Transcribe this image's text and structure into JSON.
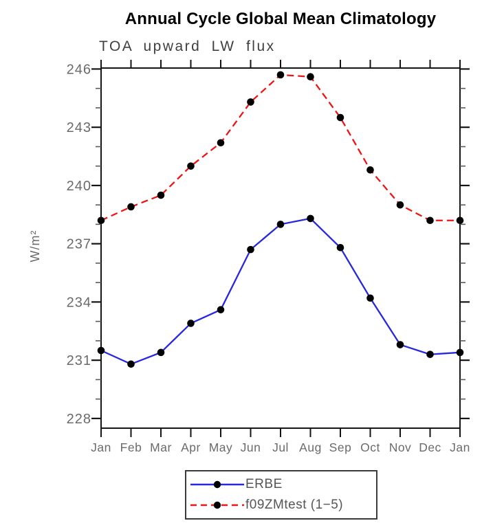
{
  "page": {
    "background": "#ffffff"
  },
  "chart_data": {
    "type": "line",
    "title": "Annual Cycle Global Mean Climatology",
    "subtitle": "TOA upward LW flux",
    "ylabel": "W/m²",
    "xlabel": "",
    "x_tick_labels": [
      "Jan",
      "Feb",
      "Mar",
      "Apr",
      "May",
      "Jun",
      "Jul",
      "Aug",
      "Sep",
      "Oct",
      "Nov",
      "Dec",
      "Jan"
    ],
    "y_major_ticks": [
      228,
      231,
      234,
      237,
      240,
      243,
      246
    ],
    "y_minor_tick_interval": 1,
    "ylim": [
      227.5,
      246.05
    ],
    "grid": false,
    "legend_position": "bottom-center",
    "series": [
      {
        "name": "ERBE",
        "color": "#2727e0",
        "line_style": "solid",
        "marker": "filled-circle",
        "marker_color": "#000000",
        "values": [
          231.5,
          230.8,
          231.4,
          232.9,
          233.6,
          236.7,
          238.0,
          238.3,
          236.8,
          234.2,
          231.8,
          231.3,
          231.4
        ]
      },
      {
        "name": "f09ZMtest (1−5)",
        "color": "#ee1414",
        "line_style": "dashed",
        "marker": "filled-circle",
        "marker_color": "#000000",
        "values": [
          238.2,
          238.9,
          239.5,
          241.0,
          242.2,
          244.3,
          245.7,
          245.6,
          243.5,
          240.8,
          239.0,
          238.2,
          238.2
        ]
      }
    ],
    "colors": {
      "axis": "#141414",
      "minor_tick": "#5a5a5a",
      "title_text": "#000000",
      "subtitle_text": "#3f3f3f",
      "axis_label_text": "#6a6a6a",
      "legend_text": "#565656"
    }
  }
}
